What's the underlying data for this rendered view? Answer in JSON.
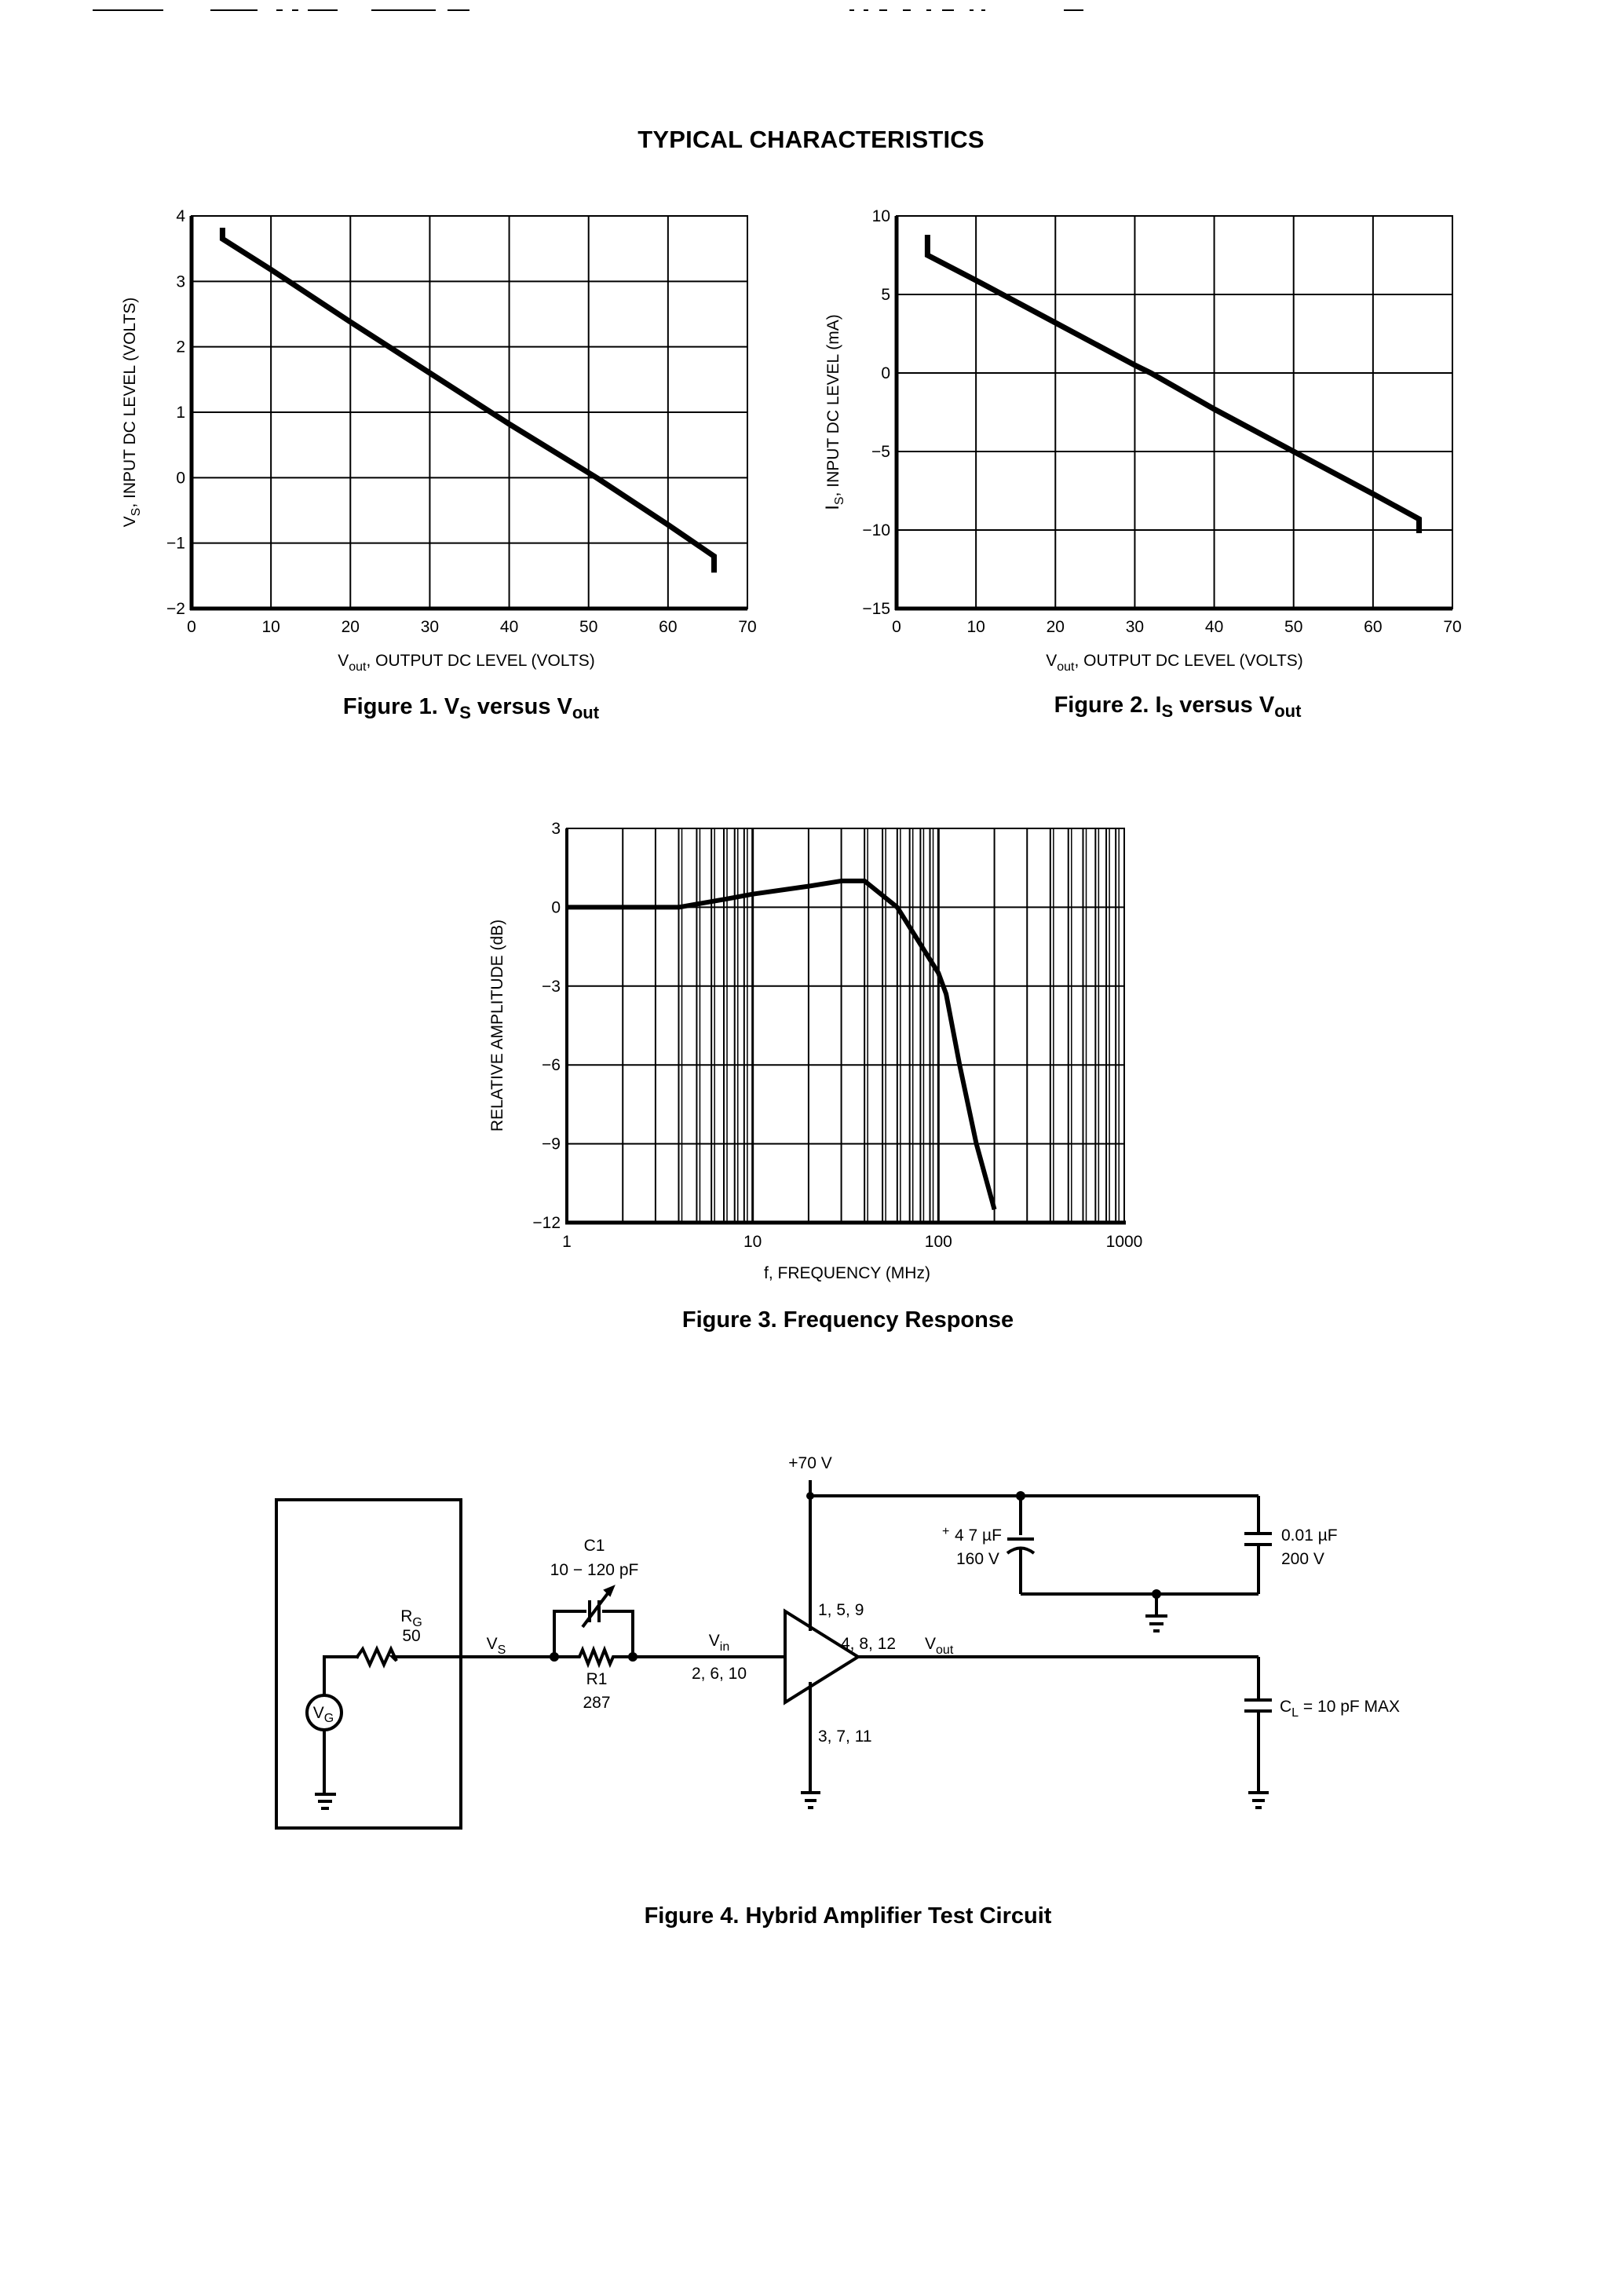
{
  "page": {
    "title": "TYPICAL CHARACTERISTICS"
  },
  "figures": {
    "fig1": {
      "caption_prefix": "Figure 1. V",
      "caption_sub1": "S",
      "caption_mid": " versus V",
      "caption_sub2": "out",
      "xlabel_main": "V",
      "xlabel_sub": "out",
      "xlabel_rest": ", OUTPUT DC LEVEL (VOLTS)",
      "ylabel_main": "V",
      "ylabel_sub": "S",
      "ylabel_rest": ", INPUT DC LEVEL (VOLTS)",
      "xticks": [
        "0",
        "10",
        "20",
        "30",
        "40",
        "50",
        "60",
        "70"
      ],
      "yticks": [
        "4",
        "3",
        "2",
        "1",
        "0",
        "−1",
        "−2"
      ]
    },
    "fig2": {
      "caption_prefix": "Figure 2. I",
      "caption_sub1": "S",
      "caption_mid": " versus V",
      "caption_sub2": "out",
      "xlabel_main": "V",
      "xlabel_sub": "out",
      "xlabel_rest": ", OUTPUT DC LEVEL (VOLTS)",
      "ylabel_main": "I",
      "ylabel_sub": "S",
      "ylabel_rest": ", INPUT DC LEVEL (mA)",
      "xticks": [
        "0",
        "10",
        "20",
        "30",
        "40",
        "50",
        "60",
        "70"
      ],
      "yticks": [
        "10",
        "5",
        "0",
        "−5",
        "−10",
        "−15"
      ]
    },
    "fig3": {
      "caption": "Figure 3. Frequency Response",
      "xlabel": "f, FREQUENCY (MHz)",
      "ylabel": "RELATIVE AMPLITUDE (dB)",
      "xticks": [
        "1",
        "10",
        "100",
        "1000"
      ],
      "yticks": [
        "3",
        "0",
        "−3",
        "−6",
        "−9",
        "−12"
      ]
    },
    "fig4": {
      "caption": "Figure 4. Hybrid Amplifier Test Circuit",
      "labels": {
        "supply": "+70 V",
        "rg_name": "R",
        "rg_sub": "G",
        "rg_value": "50",
        "vg_main": "V",
        "vg_sub": "G",
        "vs_main": "V",
        "vs_sub": "S",
        "c1_name": "C1",
        "c1_value": "10 − 120 pF",
        "r1_name": "R1",
        "r1_value": "287",
        "vin_main": "V",
        "vin_sub": "in",
        "input_pins": "2, 6, 10",
        "supply_pins": "1, 5, 9",
        "output_pins": "4, 8, 12",
        "ground_pins": "3, 7, 11",
        "vout_main": "V",
        "vout_sub": "out",
        "cap1_value": "4 7 µF",
        "cap1_voltage": "160 V",
        "cap1_polarity": "+",
        "cap2_value": "0.01 µF",
        "cap2_voltage": "200 V",
        "cl_main": "C",
        "cl_sub": "L",
        "cl_rest": " = 10 pF MAX"
      }
    }
  },
  "chart_data": [
    {
      "type": "line",
      "title": "Figure 1. VS versus Vout",
      "xlabel": "Vout, OUTPUT DC LEVEL (VOLTS)",
      "ylabel": "VS, INPUT DC LEVEL (VOLTS)",
      "xlim": [
        0,
        70
      ],
      "ylim": [
        -2,
        4
      ],
      "xticks": [
        0,
        10,
        20,
        30,
        40,
        50,
        60,
        70
      ],
      "yticks": [
        -2,
        -1,
        0,
        1,
        2,
        3,
        4
      ],
      "grid": true,
      "series": [
        {
          "name": "VS",
          "x": [
            3.9,
            3.9,
            10,
            20,
            30,
            40,
            51,
            60,
            65.8,
            65.8
          ],
          "y": [
            3.82,
            3.65,
            3.18,
            2.38,
            1.6,
            0.82,
            0.0,
            -0.72,
            -1.2,
            -1.45
          ]
        }
      ]
    },
    {
      "type": "line",
      "title": "Figure 2. IS versus Vout",
      "xlabel": "Vout, OUTPUT DC LEVEL (VOLTS)",
      "ylabel": "IS, INPUT DC LEVEL (mA)",
      "xlim": [
        0,
        70
      ],
      "ylim": [
        -15,
        10
      ],
      "xticks": [
        0,
        10,
        20,
        30,
        40,
        50,
        60,
        70
      ],
      "yticks": [
        -15,
        -10,
        -5,
        0,
        5,
        10
      ],
      "grid": true,
      "series": [
        {
          "name": "IS",
          "x": [
            3.9,
            3.9,
            10,
            20,
            30,
            32,
            40,
            50,
            60,
            65.8,
            65.8
          ],
          "y": [
            8.8,
            7.5,
            5.9,
            3.2,
            0.5,
            0.0,
            -2.3,
            -5.0,
            -7.7,
            -9.3,
            -10.2
          ]
        }
      ]
    },
    {
      "type": "line",
      "title": "Figure 3. Frequency Response",
      "xlabel": "f, FREQUENCY (MHz)",
      "ylabel": "RELATIVE AMPLITUDE (dB)",
      "xscale": "log",
      "xlim": [
        1,
        1000
      ],
      "ylim": [
        -12,
        3
      ],
      "xticks": [
        1,
        10,
        100,
        1000
      ],
      "yticks": [
        -12,
        -9,
        -6,
        -3,
        0,
        3
      ],
      "grid": true,
      "series": [
        {
          "name": "Response",
          "x": [
            1,
            4,
            7,
            10,
            20,
            30,
            40,
            60,
            100,
            110,
            130,
            160,
            200
          ],
          "y": [
            0,
            0,
            0.3,
            0.5,
            0.8,
            1.0,
            1.0,
            0.0,
            -2.5,
            -3.3,
            -6.0,
            -9.0,
            -11.5
          ]
        }
      ]
    }
  ]
}
